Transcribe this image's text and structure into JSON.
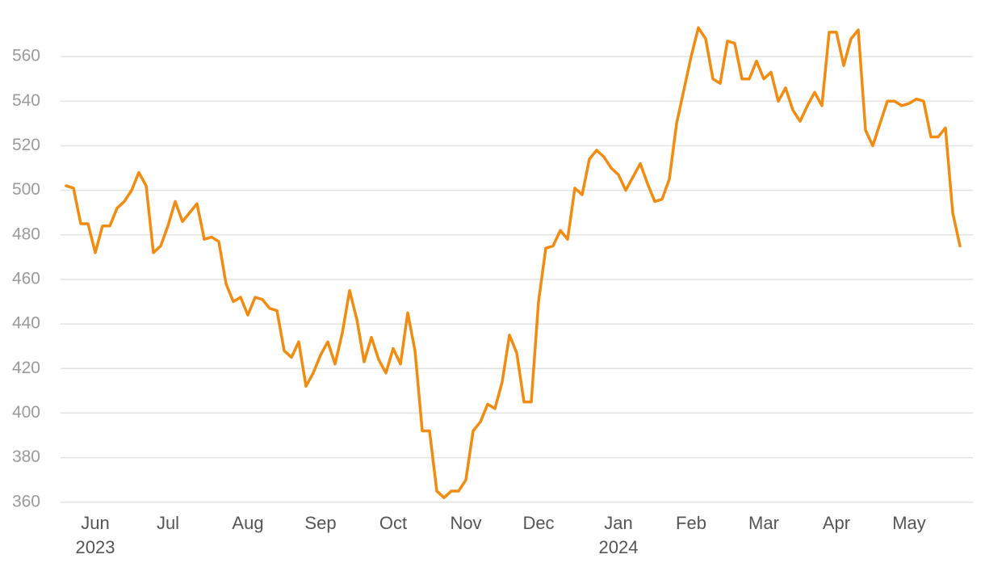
{
  "chart_data": {
    "type": "line",
    "categories": [
      null,
      null,
      null,
      null,
      "Jun",
      null,
      null,
      null,
      null,
      null,
      null,
      null,
      null,
      null,
      "Jul",
      null,
      null,
      null,
      null,
      null,
      null,
      null,
      null,
      null,
      null,
      "Aug",
      null,
      null,
      null,
      null,
      null,
      null,
      null,
      null,
      null,
      "Sep",
      null,
      null,
      null,
      null,
      null,
      null,
      null,
      null,
      null,
      "Oct",
      null,
      null,
      null,
      null,
      null,
      null,
      null,
      null,
      null,
      "Nov",
      null,
      null,
      null,
      null,
      null,
      null,
      null,
      null,
      null,
      "Dec",
      null,
      null,
      null,
      null,
      null,
      null,
      null,
      null,
      null,
      null,
      "Jan",
      null,
      null,
      null,
      null,
      null,
      null,
      null,
      null,
      null,
      "Feb",
      null,
      null,
      null,
      null,
      null,
      null,
      null,
      null,
      null,
      "Mar",
      null,
      null,
      null,
      null,
      null,
      null,
      null,
      null,
      null,
      "Apr",
      null,
      null,
      null,
      null,
      null,
      null,
      null,
      null,
      null,
      "May",
      null,
      null,
      null,
      null,
      null,
      null,
      null
    ],
    "category_years": [
      null,
      null,
      null,
      null,
      "2023",
      null,
      null,
      null,
      null,
      null,
      null,
      null,
      null,
      null,
      null,
      null,
      null,
      null,
      null,
      null,
      null,
      null,
      null,
      null,
      null,
      null,
      null,
      null,
      null,
      null,
      null,
      null,
      null,
      null,
      null,
      null,
      null,
      null,
      null,
      null,
      null,
      null,
      null,
      null,
      null,
      null,
      null,
      null,
      null,
      null,
      null,
      null,
      null,
      null,
      null,
      null,
      null,
      null,
      null,
      null,
      null,
      null,
      null,
      null,
      null,
      null,
      null,
      null,
      null,
      null,
      null,
      null,
      null,
      null,
      null,
      null,
      "2024",
      null,
      null,
      null,
      null,
      null,
      null,
      null,
      null,
      null,
      null,
      null,
      null,
      null,
      null,
      null,
      null,
      null,
      null,
      null,
      null,
      null,
      null,
      null,
      null,
      null,
      null,
      null,
      null,
      null,
      null,
      null,
      null,
      null,
      null,
      null,
      null,
      null,
      null,
      null,
      null,
      null,
      null,
      null,
      null,
      null,
      null,
      null
    ],
    "values": [
      502,
      501,
      485,
      485,
      472,
      484,
      484,
      492,
      495,
      500,
      508,
      502,
      472,
      475,
      484,
      495,
      486,
      490,
      494,
      478,
      479,
      477,
      458,
      450,
      452,
      444,
      452,
      451,
      447,
      446,
      428,
      425,
      432,
      412,
      418,
      426,
      432,
      422,
      436,
      455,
      442,
      423,
      434,
      424,
      418,
      429,
      422,
      445,
      428,
      392,
      392,
      365,
      362,
      365,
      365,
      370,
      392,
      396,
      404,
      402,
      414,
      435,
      427,
      405,
      405,
      450,
      474,
      475,
      482,
      478,
      501,
      498,
      514,
      518,
      515,
      510,
      507,
      500,
      506,
      512,
      503,
      495,
      496,
      505,
      530,
      545,
      560,
      573,
      568,
      550,
      548,
      567,
      566,
      550,
      550,
      558,
      550,
      553,
      540,
      546,
      536,
      531,
      538,
      544,
      538,
      571,
      571,
      556,
      568,
      572,
      527,
      520,
      530,
      540,
      540,
      538,
      539,
      541,
      540,
      524,
      524,
      528,
      490,
      475
    ],
    "color": "#f28c10",
    "ylim": [
      357,
      580
    ],
    "yticks": [
      360,
      380,
      400,
      420,
      440,
      460,
      480,
      500,
      520,
      540,
      560
    ],
    "grid": true
  }
}
